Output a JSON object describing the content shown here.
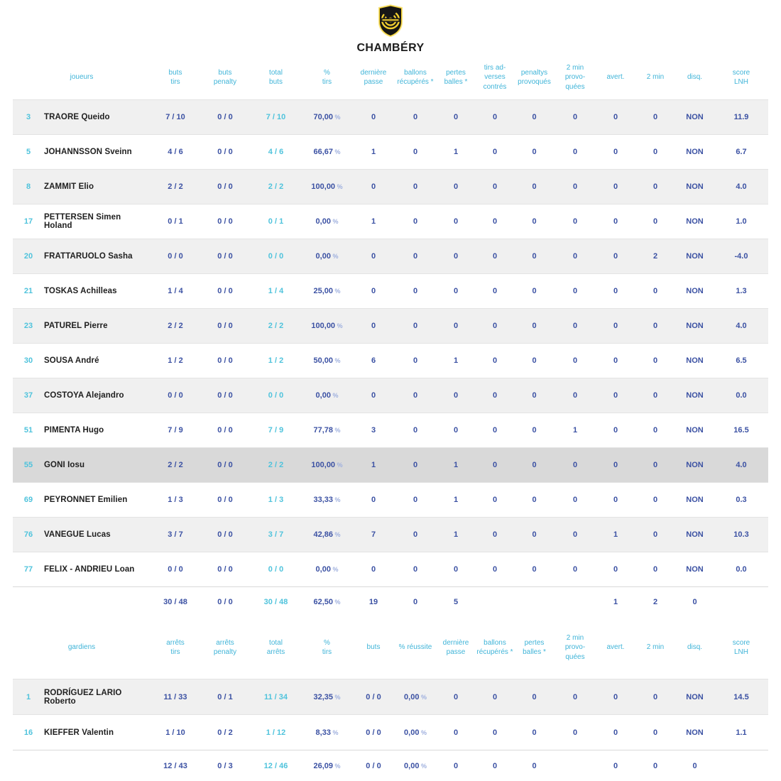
{
  "header": {
    "team_name": "CHAMBÉRY",
    "logo": "chambery-shield-logo",
    "logo_colors": {
      "shield": "#161616",
      "accent": "#f2cf2f"
    }
  },
  "colors": {
    "header_text": "#3fb4d8",
    "value_navy": "#3b51a3",
    "value_cyan": "#4fc3dc",
    "row_gray": "#f0f0f0",
    "row_highlight": "#d9d9d9"
  },
  "players_table": {
    "section": "players",
    "headers": [
      "joueurs",
      "buts\ntirs",
      "buts\npenalty",
      "total\nbuts",
      "%\ntirs",
      "dernière\npasse",
      "ballons\nrécupérés *",
      "pertes\nballes *",
      "tirs ad-\nverses\ncontrés",
      "penaltys\nprovoqués",
      "2 min\nprovo-\nquées",
      "avert.",
      "2 min",
      "disq.",
      "score\nLNH"
    ],
    "rows": [
      {
        "num": "3",
        "name": "TRAORE Queido",
        "shade": "gray",
        "cells": [
          "7 / 10",
          "0 / 0",
          "7 / 10",
          "70,00 %",
          "0",
          "0",
          "0",
          "0",
          "0",
          "0",
          "0",
          "0",
          "NON",
          "11.9"
        ]
      },
      {
        "num": "5",
        "name": "JOHANNSSON Sveinn",
        "shade": "white",
        "cells": [
          "4 / 6",
          "0 / 0",
          "4 / 6",
          "66,67 %",
          "1",
          "0",
          "1",
          "0",
          "0",
          "0",
          "0",
          "0",
          "NON",
          "6.7"
        ]
      },
      {
        "num": "8",
        "name": "ZAMMIT Elio",
        "shade": "gray",
        "cells": [
          "2 / 2",
          "0 / 0",
          "2 / 2",
          "100,00 %",
          "0",
          "0",
          "0",
          "0",
          "0",
          "0",
          "0",
          "0",
          "NON",
          "4.0"
        ]
      },
      {
        "num": "17",
        "name": "PETTERSEN Simen Holand",
        "shade": "white",
        "cells": [
          "0 / 1",
          "0 / 0",
          "0 / 1",
          "0,00 %",
          "1",
          "0",
          "0",
          "0",
          "0",
          "0",
          "0",
          "0",
          "NON",
          "1.0"
        ]
      },
      {
        "num": "20",
        "name": "FRATTARUOLO Sasha",
        "shade": "gray",
        "cells": [
          "0 / 0",
          "0 / 0",
          "0 / 0",
          "0,00 %",
          "0",
          "0",
          "0",
          "0",
          "0",
          "0",
          "0",
          "2",
          "NON",
          "-4.0"
        ]
      },
      {
        "num": "21",
        "name": "TOSKAS Achilleas",
        "shade": "white",
        "cells": [
          "1 / 4",
          "0 / 0",
          "1 / 4",
          "25,00 %",
          "0",
          "0",
          "0",
          "0",
          "0",
          "0",
          "0",
          "0",
          "NON",
          "1.3"
        ]
      },
      {
        "num": "23",
        "name": "PATUREL Pierre",
        "shade": "gray",
        "cells": [
          "2 / 2",
          "0 / 0",
          "2 / 2",
          "100,00 %",
          "0",
          "0",
          "0",
          "0",
          "0",
          "0",
          "0",
          "0",
          "NON",
          "4.0"
        ]
      },
      {
        "num": "30",
        "name": "SOUSA André",
        "shade": "white",
        "cells": [
          "1 / 2",
          "0 / 0",
          "1 / 2",
          "50,00 %",
          "6",
          "0",
          "1",
          "0",
          "0",
          "0",
          "0",
          "0",
          "NON",
          "6.5"
        ]
      },
      {
        "num": "37",
        "name": "COSTOYA Alejandro",
        "shade": "gray",
        "cells": [
          "0 / 0",
          "0 / 0",
          "0 / 0",
          "0,00 %",
          "0",
          "0",
          "0",
          "0",
          "0",
          "0",
          "0",
          "0",
          "NON",
          "0.0"
        ]
      },
      {
        "num": "51",
        "name": "PIMENTA Hugo",
        "shade": "white",
        "cells": [
          "7 / 9",
          "0 / 0",
          "7 / 9",
          "77,78 %",
          "3",
          "0",
          "0",
          "0",
          "0",
          "1",
          "0",
          "0",
          "NON",
          "16.5"
        ]
      },
      {
        "num": "55",
        "name": "GONI Iosu",
        "shade": "dark",
        "cells": [
          "2 / 2",
          "0 / 0",
          "2 / 2",
          "100,00 %",
          "1",
          "0",
          "1",
          "0",
          "0",
          "0",
          "0",
          "0",
          "NON",
          "4.0"
        ]
      },
      {
        "num": "69",
        "name": "PEYRONNET Emilien",
        "shade": "white",
        "cells": [
          "1 / 3",
          "0 / 0",
          "1 / 3",
          "33,33 %",
          "0",
          "0",
          "1",
          "0",
          "0",
          "0",
          "0",
          "0",
          "NON",
          "0.3"
        ]
      },
      {
        "num": "76",
        "name": "VANEGUE Lucas",
        "shade": "gray",
        "cells": [
          "3 / 7",
          "0 / 0",
          "3 / 7",
          "42,86 %",
          "7",
          "0",
          "1",
          "0",
          "0",
          "0",
          "1",
          "0",
          "NON",
          "10.3"
        ]
      },
      {
        "num": "77",
        "name": "FELIX - ANDRIEU Loan",
        "shade": "white",
        "cells": [
          "0 / 0",
          "0 / 0",
          "0 / 0",
          "0,00 %",
          "0",
          "0",
          "0",
          "0",
          "0",
          "0",
          "0",
          "0",
          "NON",
          "0.0"
        ]
      }
    ],
    "totals": [
      "30 / 48",
      "0 / 0",
      "30 / 48",
      "62,50 %",
      "19",
      "0",
      "5",
      "",
      "",
      "",
      "1",
      "2",
      "0",
      ""
    ]
  },
  "goalkeepers_table": {
    "section": "goalkeepers",
    "headers": [
      "gardiens",
      "arrêts\ntirs",
      "arrêts\npenalty",
      "total\narrêts",
      "%\ntirs",
      "buts",
      "% réussite",
      "dernière\npasse",
      "ballons\nrécupérés *",
      "pertes\nballes *",
      "2 min\nprovo-\nquées",
      "avert.",
      "2 min",
      "disq.",
      "score\nLNH"
    ],
    "rows": [
      {
        "num": "1",
        "name": "RODRÍGUEZ LARIO Roberto",
        "shade": "gray",
        "cells": [
          "11 / 33",
          "0 / 1",
          "11 / 34",
          "32,35 %",
          "0 / 0",
          "0,00 %",
          "0",
          "0",
          "0",
          "0",
          "0",
          "0",
          "NON",
          "14.5"
        ]
      },
      {
        "num": "16",
        "name": "KIEFFER Valentin",
        "shade": "white",
        "cells": [
          "1 / 10",
          "0 / 2",
          "1 / 12",
          "8,33 %",
          "0 / 0",
          "0,00 %",
          "0",
          "0",
          "0",
          "0",
          "0",
          "0",
          "NON",
          "1.1"
        ]
      }
    ],
    "totals": [
      "12 / 43",
      "0 / 3",
      "12 / 46",
      "26,09 %",
      "0 / 0",
      "0,00 %",
      "0",
      "0",
      "0",
      "",
      "0",
      "0",
      "0",
      ""
    ]
  }
}
